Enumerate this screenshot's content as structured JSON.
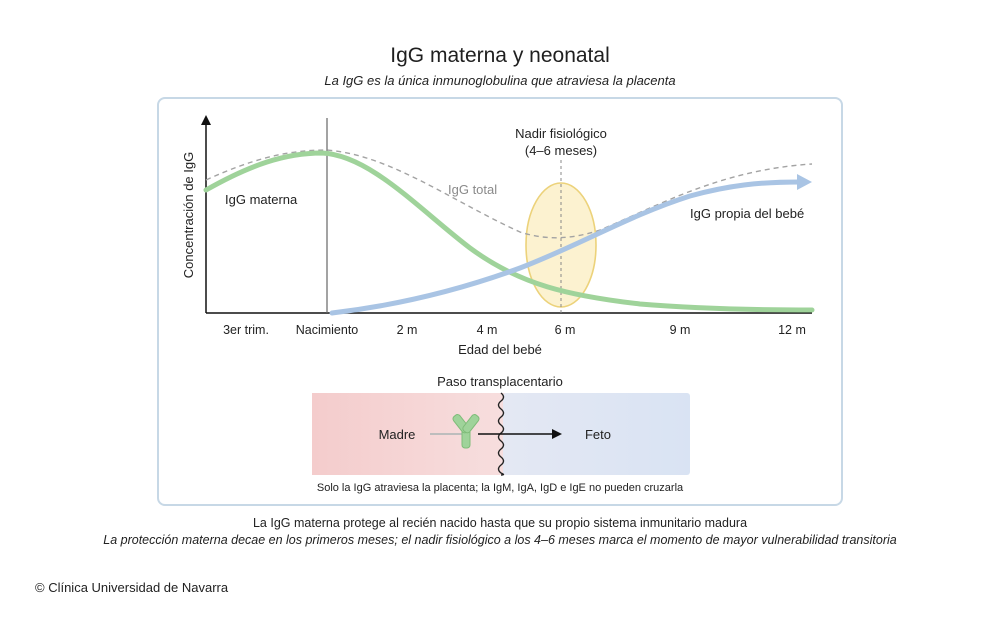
{
  "header": {
    "title": "IgG materna y neonatal",
    "subtitle": "La IgG es la única inmunoglobulina que atraviesa la placenta"
  },
  "chart": {
    "ylabel": "Concentración de IgG",
    "xlabel": "Edad del bebé",
    "ticks": [
      "3er trim.",
      "Nacimiento",
      "2 m",
      "4 m",
      "6 m",
      "9 m",
      "12 m"
    ],
    "labels": {
      "maternal": "IgG materna",
      "total": "IgG total",
      "own": "IgG propia del bebé",
      "nadir_line1": "Nadir fisiológico",
      "nadir_line2": "(4–6 meses)"
    },
    "colors": {
      "maternal": "#9fd39a",
      "own": "#a9c4e4",
      "total": "#9a9a9a",
      "nadir_fill": "#fbeec0",
      "nadir_stroke": "#ecd27a"
    }
  },
  "transfer": {
    "title": "Paso transplacentario",
    "mother": "Madre",
    "fetus": "Feto",
    "note": "Solo la IgG atraviesa la placenta; la IgM, IgA, IgD e IgE no pueden cruzarla",
    "colors": {
      "mother": "#f6d8d8",
      "fetus": "#dfe6f4",
      "antibody": "#9fd39a"
    }
  },
  "captions": {
    "line1": "La IgG materna protege al recién nacido hasta que su propio sistema inmunitario madura",
    "line2": "La protección materna decae en los primeros meses; el nadir fisiológico a los 4–6 meses marca el momento de mayor vulnerabilidad transitoria"
  },
  "credit": "© Clínica Universidad de Navarra"
}
